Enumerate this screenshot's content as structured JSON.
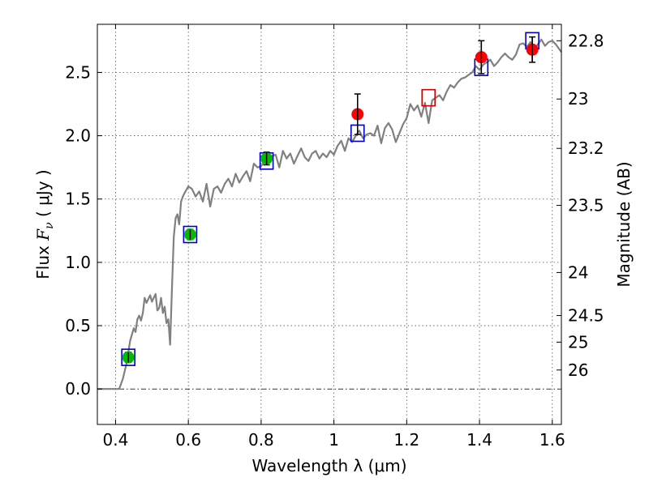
{
  "chart_data": {
    "type": "scatter",
    "xlabel": "Wavelength  λ (μm)",
    "ylabel": "Flux  F_ν  ( μJy )",
    "ylabel_right": "Magnitude (AB)",
    "xlim": [
      0.35,
      1.625
    ],
    "ylim": [
      -0.28,
      2.88
    ],
    "x_ticks": [
      0.4,
      0.6,
      0.8,
      1.0,
      1.2,
      1.4,
      1.6
    ],
    "x_tick_labels": [
      "0.4",
      "0.6",
      "0.8",
      "1",
      "1.2",
      "1.4",
      "1.6"
    ],
    "y_ticks": [
      0.0,
      0.5,
      1.0,
      1.5,
      2.0,
      2.5
    ],
    "y_tick_labels": [
      "0.0",
      "0.5",
      "1.0",
      "1.5",
      "2.0",
      "2.5"
    ],
    "right_ticks": [
      {
        "label": "22.8",
        "flux": 2.75
      },
      {
        "label": "23",
        "flux": 2.29
      },
      {
        "label": "23.2",
        "flux": 1.9
      },
      {
        "label": "23.5",
        "flux": 1.45
      },
      {
        "label": "24",
        "flux": 0.92
      },
      {
        "label": "24.5",
        "flux": 0.58
      },
      {
        "label": "25",
        "flux": 0.37
      },
      {
        "label": "26",
        "flux": 0.15
      }
    ],
    "grid": true,
    "zero_line": true,
    "colors": {
      "model": "#808080",
      "green": "#00bb00",
      "red": "#ff0000",
      "box": "#0000cc",
      "box_red": "#cc0000",
      "errorbar": "#000000"
    },
    "model_spectrum": {
      "x": [
        0.35,
        0.41,
        0.42,
        0.43,
        0.44,
        0.45,
        0.455,
        0.46,
        0.465,
        0.47,
        0.475,
        0.48,
        0.485,
        0.49,
        0.495,
        0.5,
        0.505,
        0.51,
        0.515,
        0.52,
        0.525,
        0.53,
        0.535,
        0.54,
        0.545,
        0.55,
        0.555,
        0.56,
        0.565,
        0.57,
        0.575,
        0.58,
        0.585,
        0.59,
        0.6,
        0.61,
        0.62,
        0.63,
        0.64,
        0.65,
        0.66,
        0.67,
        0.68,
        0.69,
        0.7,
        0.71,
        0.72,
        0.73,
        0.74,
        0.75,
        0.76,
        0.77,
        0.78,
        0.79,
        0.8,
        0.81,
        0.82,
        0.83,
        0.84,
        0.85,
        0.86,
        0.87,
        0.88,
        0.89,
        0.9,
        0.91,
        0.92,
        0.93,
        0.94,
        0.95,
        0.96,
        0.97,
        0.98,
        0.99,
        1.0,
        1.01,
        1.02,
        1.03,
        1.04,
        1.05,
        1.06,
        1.07,
        1.08,
        1.09,
        1.1,
        1.11,
        1.12,
        1.13,
        1.14,
        1.15,
        1.16,
        1.17,
        1.18,
        1.19,
        1.2,
        1.21,
        1.22,
        1.23,
        1.24,
        1.25,
        1.26,
        1.27,
        1.28,
        1.29,
        1.3,
        1.31,
        1.32,
        1.33,
        1.34,
        1.35,
        1.36,
        1.37,
        1.38,
        1.39,
        1.4,
        1.41,
        1.42,
        1.43,
        1.44,
        1.45,
        1.46,
        1.47,
        1.48,
        1.49,
        1.5,
        1.51,
        1.52,
        1.53,
        1.54,
        1.55,
        1.56,
        1.57,
        1.58,
        1.59,
        1.6,
        1.61,
        1.625
      ],
      "y": [
        0.0,
        0.0,
        0.08,
        0.2,
        0.38,
        0.48,
        0.45,
        0.55,
        0.58,
        0.54,
        0.6,
        0.72,
        0.68,
        0.71,
        0.74,
        0.69,
        0.72,
        0.75,
        0.62,
        0.64,
        0.72,
        0.6,
        0.65,
        0.52,
        0.55,
        0.35,
        0.8,
        1.2,
        1.35,
        1.38,
        1.3,
        1.48,
        1.52,
        1.55,
        1.6,
        1.58,
        1.52,
        1.56,
        1.48,
        1.62,
        1.44,
        1.58,
        1.6,
        1.55,
        1.62,
        1.66,
        1.6,
        1.7,
        1.63,
        1.68,
        1.72,
        1.64,
        1.78,
        1.75,
        1.76,
        1.8,
        1.79,
        1.84,
        1.85,
        1.75,
        1.88,
        1.82,
        1.86,
        1.78,
        1.84,
        1.9,
        1.83,
        1.8,
        1.86,
        1.88,
        1.82,
        1.86,
        1.83,
        1.88,
        1.85,
        1.92,
        1.96,
        1.88,
        1.98,
        1.95,
        2.0,
        2.04,
        1.98,
        2.01,
        2.02,
        2.0,
        2.08,
        1.94,
        2.06,
        2.1,
        2.05,
        1.95,
        2.02,
        2.09,
        2.14,
        2.25,
        2.2,
        2.24,
        2.15,
        2.26,
        2.1,
        2.28,
        2.3,
        2.32,
        2.28,
        2.35,
        2.4,
        2.38,
        2.42,
        2.45,
        2.46,
        2.48,
        2.5,
        2.55,
        2.52,
        2.56,
        2.58,
        2.6,
        2.55,
        2.58,
        2.62,
        2.65,
        2.62,
        2.6,
        2.64,
        2.72,
        2.73,
        2.7,
        2.74,
        2.68,
        2.72,
        2.76,
        2.71,
        2.74,
        2.75,
        2.72,
        2.66
      ]
    },
    "green_points": {
      "x": [
        0.435,
        0.605,
        0.815
      ],
      "y": [
        0.25,
        1.22,
        1.82
      ],
      "err": [
        0.04,
        0.04,
        0.05
      ]
    },
    "red_points": {
      "x": [
        1.065,
        1.405,
        1.545
      ],
      "y": [
        2.17,
        2.62,
        2.68
      ],
      "err": [
        0.16,
        0.13,
        0.1
      ]
    },
    "model_boxes": [
      {
        "x": 0.435,
        "y": 0.25,
        "color": "box"
      },
      {
        "x": 0.605,
        "y": 1.22,
        "color": "box"
      },
      {
        "x": 0.815,
        "y": 1.8,
        "color": "box"
      },
      {
        "x": 1.065,
        "y": 2.02,
        "color": "box"
      },
      {
        "x": 1.26,
        "y": 2.3,
        "color": "box_red"
      },
      {
        "x": 1.405,
        "y": 2.54,
        "color": "box"
      },
      {
        "x": 1.545,
        "y": 2.75,
        "color": "box"
      }
    ]
  }
}
